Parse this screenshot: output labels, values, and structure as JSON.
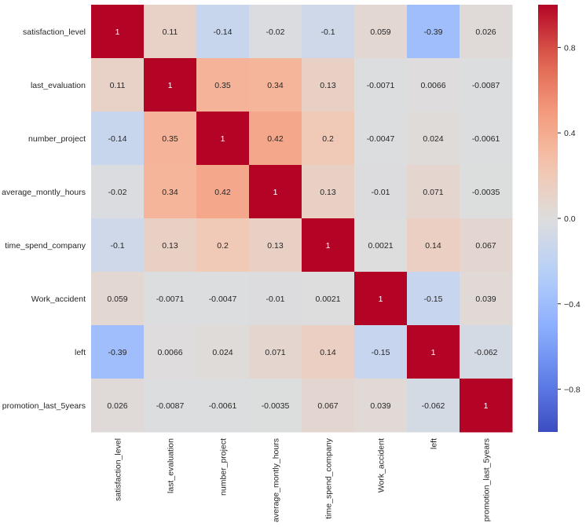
{
  "chart_data": {
    "type": "heatmap",
    "title": "",
    "xlabel": "",
    "ylabel": "",
    "row_labels": [
      "satisfaction_level",
      "last_evaluation",
      "number_project",
      "average_montly_hours",
      "time_spend_company",
      "Work_accident",
      "left",
      "promotion_last_5years"
    ],
    "col_labels": [
      "satisfaction_level",
      "last_evaluation",
      "number_project",
      "average_montly_hours",
      "time_spend_company",
      "Work_accident",
      "left",
      "promotion_last_5years"
    ],
    "values": [
      [
        1,
        0.11,
        -0.14,
        -0.02,
        -0.1,
        0.059,
        -0.39,
        0.026
      ],
      [
        0.11,
        1,
        0.35,
        0.34,
        0.13,
        -0.0071,
        0.0066,
        -0.0087
      ],
      [
        -0.14,
        0.35,
        1,
        0.42,
        0.2,
        -0.0047,
        0.024,
        -0.0061
      ],
      [
        -0.02,
        0.34,
        0.42,
        1,
        0.13,
        -0.01,
        0.071,
        -0.0035
      ],
      [
        -0.1,
        0.13,
        0.2,
        0.13,
        1,
        0.0021,
        0.14,
        0.067
      ],
      [
        0.059,
        -0.0071,
        -0.0047,
        -0.01,
        0.0021,
        1,
        -0.15,
        0.039
      ],
      [
        -0.39,
        0.0066,
        0.024,
        0.071,
        0.14,
        -0.15,
        1,
        -0.062
      ],
      [
        0.026,
        -0.0087,
        -0.0061,
        -0.0035,
        0.067,
        0.039,
        -0.062,
        1
      ]
    ],
    "value_labels": [
      [
        "1",
        "0.11",
        "-0.14",
        "-0.02",
        "-0.1",
        "0.059",
        "-0.39",
        "0.026"
      ],
      [
        "0.11",
        "1",
        "0.35",
        "0.34",
        "0.13",
        "-0.0071",
        "0.0066",
        "-0.0087"
      ],
      [
        "-0.14",
        "0.35",
        "1",
        "0.42",
        "0.2",
        "-0.0047",
        "0.024",
        "-0.0061"
      ],
      [
        "-0.02",
        "0.34",
        "0.42",
        "1",
        "0.13",
        "-0.01",
        "0.071",
        "-0.0035"
      ],
      [
        "-0.1",
        "0.13",
        "0.2",
        "0.13",
        "1",
        "0.0021",
        "0.14",
        "0.067"
      ],
      [
        "0.059",
        "-0.0071",
        "-0.0047",
        "-0.01",
        "0.0021",
        "1",
        "-0.15",
        "0.039"
      ],
      [
        "-0.39",
        "0.0066",
        "0.024",
        "0.071",
        "0.14",
        "-0.15",
        "1",
        "-0.062"
      ],
      [
        "0.026",
        "-0.0087",
        "-0.0061",
        "-0.0035",
        "0.067",
        "0.039",
        "-0.062",
        "1"
      ]
    ],
    "colormap": "coolwarm",
    "vmin": -1,
    "vmax": 1,
    "colorbar": {
      "ticks": [
        0.8,
        0.4,
        0.0,
        -0.4,
        -0.8
      ],
      "tick_labels": [
        "0.8",
        "0.4",
        "0.0",
        "−0.4",
        "−0.8"
      ],
      "placement": "right"
    },
    "annotations": true,
    "grid": false
  }
}
